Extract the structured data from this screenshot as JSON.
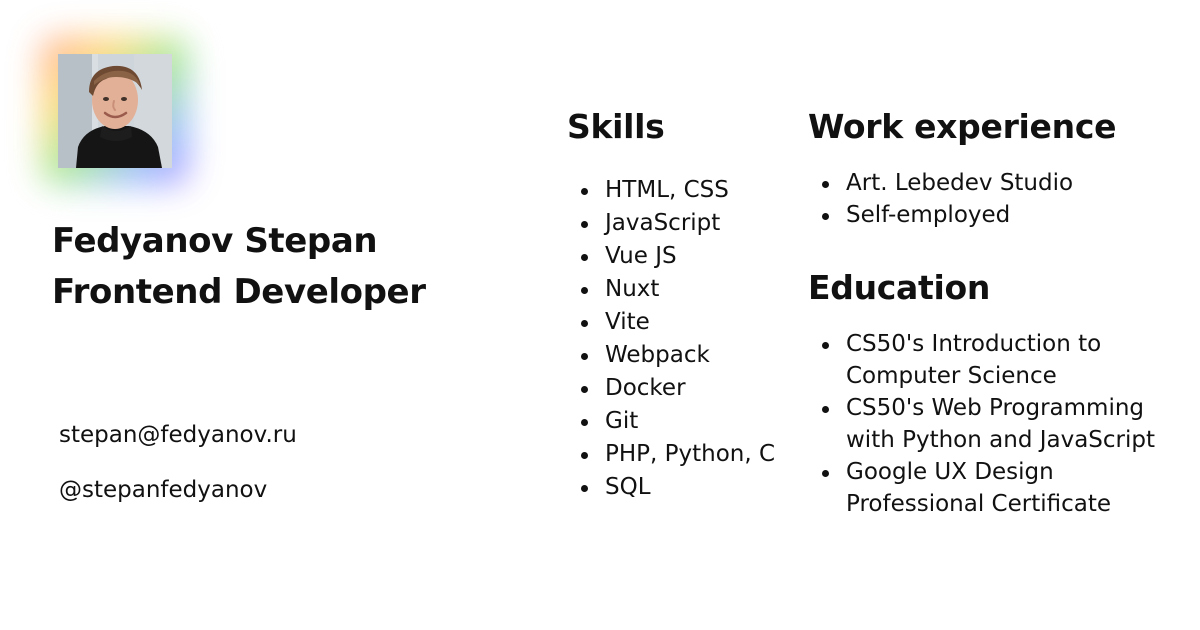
{
  "profile": {
    "name": "Fedyanov Stepan",
    "title": "Frontend Developer",
    "email": "stepan@fedyanov.ru",
    "handle": "@stepanfedyanov"
  },
  "skills": {
    "heading": "Skills",
    "items": [
      "HTML, CSS",
      "JavaScript",
      "Vue JS",
      "Nuxt",
      "Vite",
      "Webpack",
      "Docker",
      "Git",
      "PHP, Python, C",
      "SQL"
    ]
  },
  "work": {
    "heading": "Work experience",
    "items": [
      "Art. Lebedev Studio",
      "Self-employed"
    ]
  },
  "education": {
    "heading": "Education",
    "items": [
      {
        "line1": "CS50's Introduction to",
        "line2": "Computer Science"
      },
      {
        "line1": "CS50's Web Programming",
        "line2": "with Python and JavaScript"
      },
      {
        "line1": "Google UX Design",
        "line2": "Professional Certificate"
      }
    ]
  }
}
